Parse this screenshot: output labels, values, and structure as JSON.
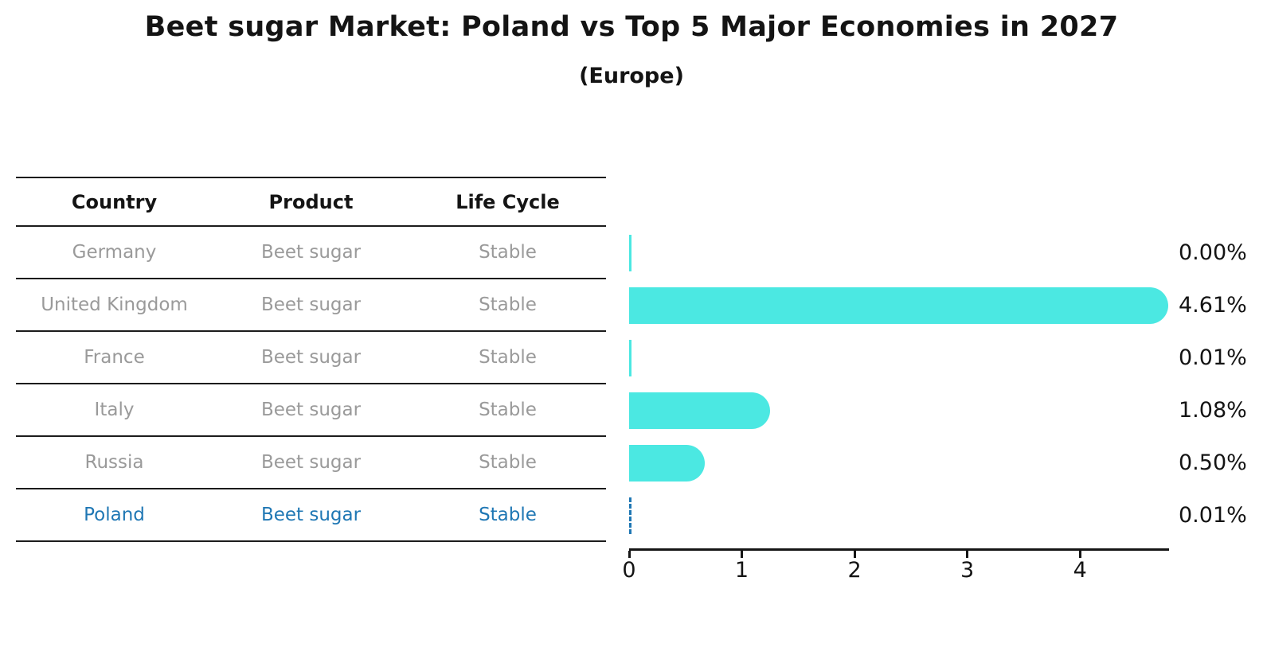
{
  "figure": {
    "title": "Beet sugar Market: Poland vs Top 5 Major Economies in 2027",
    "subtitle": "(Europe)"
  },
  "table": {
    "headers": [
      "Country",
      "Product",
      "Life Cycle"
    ],
    "rows": [
      {
        "country": "Germany",
        "product": "Beet sugar",
        "life_cycle": "Stable",
        "highlight": false
      },
      {
        "country": "United Kingdom",
        "product": "Beet sugar",
        "life_cycle": "Stable",
        "highlight": false
      },
      {
        "country": "France",
        "product": "Beet sugar",
        "life_cycle": "Stable",
        "highlight": false
      },
      {
        "country": "Italy",
        "product": "Beet sugar",
        "life_cycle": "Stable",
        "highlight": false
      },
      {
        "country": "Russia",
        "product": "Beet sugar",
        "life_cycle": "Stable",
        "highlight": false
      },
      {
        "country": "Poland",
        "product": "Beet sugar",
        "life_cycle": "Stable",
        "highlight": true
      }
    ]
  },
  "chart_data": {
    "type": "bar",
    "orientation": "horizontal",
    "title": "Beet sugar Market: Poland vs Top 5 Major Economies in 2027",
    "subtitle": "(Europe)",
    "categories": [
      "Germany",
      "United Kingdom",
      "France",
      "Italy",
      "Russia",
      "Poland"
    ],
    "values": [
      0.0,
      4.61,
      0.01,
      1.08,
      0.5,
      0.01
    ],
    "value_labels": [
      "0.00%",
      "4.61%",
      "0.01%",
      "1.08%",
      "0.50%",
      "0.01%"
    ],
    "xlabel": "",
    "ylabel": "",
    "xlim": [
      0,
      4.79
    ],
    "x_ticks": [
      0,
      1,
      2,
      3,
      4
    ],
    "grid": false,
    "legend": false,
    "bar_color": "#4BE8E2",
    "highlight_color": "#1f77b4",
    "highlight_category": "Poland",
    "muted_text_color": "#9a9a9a",
    "axis_color": "#151515"
  }
}
